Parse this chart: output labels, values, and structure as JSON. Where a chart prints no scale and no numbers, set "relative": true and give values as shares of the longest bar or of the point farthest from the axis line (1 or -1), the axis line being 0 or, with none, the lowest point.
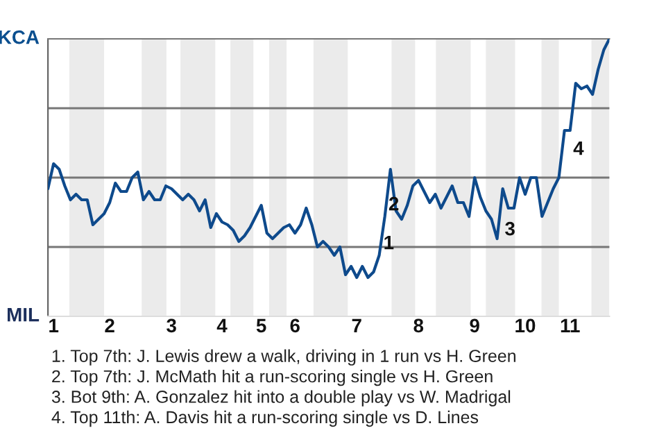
{
  "chart_data": {
    "type": "line",
    "relative": true,
    "categories": [
      null,
      "1",
      null,
      null,
      null,
      null,
      null,
      null,
      null,
      null,
      null,
      "2",
      null,
      null,
      null,
      null,
      null,
      null,
      null,
      null,
      null,
      null,
      "3",
      null,
      null,
      null,
      null,
      null,
      null,
      null,
      null,
      "4",
      null,
      null,
      null,
      null,
      null,
      null,
      "5",
      null,
      null,
      null,
      null,
      null,
      "6",
      null,
      null,
      null,
      null,
      null,
      null,
      null,
      null,
      null,
      null,
      "7",
      null,
      null,
      null,
      null,
      null,
      null,
      null,
      null,
      null,
      null,
      "8",
      null,
      null,
      null,
      null,
      null,
      null,
      null,
      null,
      null,
      "9",
      null,
      null,
      null,
      null,
      null,
      null,
      null,
      null,
      "10",
      null,
      null,
      null,
      null,
      null,
      null,
      null,
      "11",
      null,
      null,
      null,
      null,
      null,
      null,
      null
    ],
    "series": [
      {
        "color": "#0e4a8c",
        "values": [
          0.46,
          0.55,
          0.53,
          0.47,
          0.42,
          0.44,
          0.42,
          0.42,
          0.33,
          0.35,
          0.37,
          0.41,
          0.48,
          0.45,
          0.45,
          0.5,
          0.52,
          0.42,
          0.45,
          0.42,
          0.42,
          0.47,
          0.46,
          0.44,
          0.42,
          0.44,
          0.42,
          0.38,
          0.42,
          0.32,
          0.37,
          0.34,
          0.33,
          0.31,
          0.27,
          0.29,
          0.32,
          0.36,
          0.4,
          0.3,
          0.28,
          0.3,
          0.32,
          0.33,
          0.3,
          0.33,
          0.39,
          0.33,
          0.25,
          0.27,
          0.25,
          0.22,
          0.25,
          0.15,
          0.18,
          0.14,
          0.18,
          0.14,
          0.16,
          0.22,
          0.36,
          0.53,
          0.38,
          0.35,
          0.4,
          0.47,
          0.49,
          0.45,
          0.41,
          0.44,
          0.39,
          0.43,
          0.47,
          0.41,
          0.41,
          0.36,
          0.5,
          0.43,
          0.38,
          0.35,
          0.28,
          0.46,
          0.39,
          0.39,
          0.5,
          0.44,
          0.5,
          0.5,
          0.36,
          0.41,
          0.46,
          0.5,
          0.67,
          0.67,
          0.84,
          0.82,
          0.83,
          0.8,
          0.89,
          0.96,
          1
        ]
      }
    ],
    "legend": false,
    "marker": "none",
    "line_style": "solid",
    "ref_lines": [
      {
        "axis": "y",
        "value": 0.25,
        "color": "#777777"
      },
      {
        "axis": "y",
        "value": 0.5,
        "color": "#777777"
      },
      {
        "axis": "y",
        "value": 0.75,
        "color": "#777777"
      }
    ],
    "annotations": [
      "KCA",
      "MIL",
      "1",
      "2",
      "3",
      "4",
      "1. Top 7th: J. Lewis drew a walk, driving in 1 run vs H. Green",
      "2. Top 7th: J. McMath hit a run-scoring single vs H. Green",
      "3. Bot 9th: A. Gonzalez hit into a double play vs W. Madrigal",
      "4. Top 11th: A. Davis hit a run-scoring single vs D. Lines"
    ]
  }
}
